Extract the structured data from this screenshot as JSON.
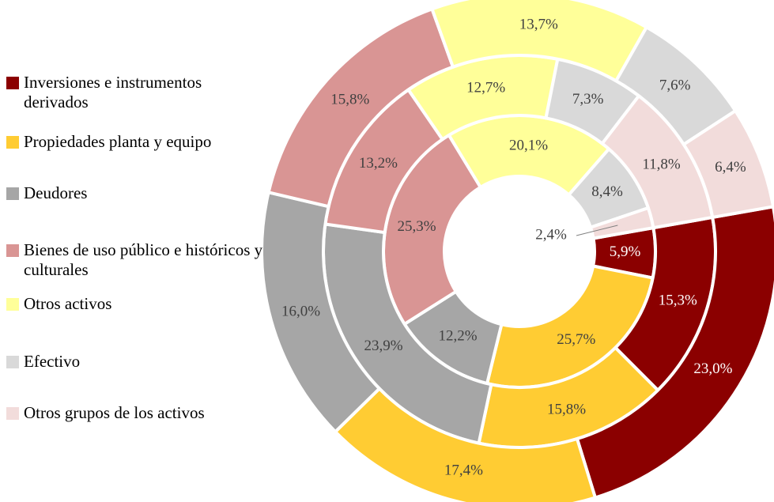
{
  "chart_data": {
    "type": "donut",
    "categories": [
      "Inversiones e instrumentos derivados",
      "Propiedades planta y equipo",
      "Deudores",
      "Bienes de uso público e históricos y culturales",
      "Otros activos",
      "Efectivo",
      "Otros grupos de los activos"
    ],
    "colors": [
      "#8b0000",
      "#ffcc33",
      "#a6a6a6",
      "#d99594",
      "#ffff99",
      "#d9d9d9",
      "#f2dcdb"
    ],
    "series": [
      {
        "values": [
          5.9,
          25.7,
          12.2,
          25.3,
          20.1,
          8.4,
          2.4
        ],
        "value_labels": [
          "5,9%",
          "25,7%",
          "12,2%",
          "25,3%",
          "20,1%",
          "8,4%",
          "2,4%"
        ]
      },
      {
        "values": [
          15.3,
          15.8,
          23.9,
          13.2,
          12.7,
          7.3,
          11.8
        ],
        "value_labels": [
          "15,3%",
          "15,8%",
          "23,9%",
          "13,2%",
          "12,7%",
          "7,3%",
          "11,8%"
        ]
      },
      {
        "values": [
          23.0,
          17.4,
          16.0,
          15.8,
          13.7,
          7.6,
          6.4
        ],
        "value_labels": [
          "23,0%",
          "17,4%",
          "16,0%",
          "15,8%",
          "13,7%",
          "7,6%",
          "6,4%"
        ]
      }
    ],
    "legend": "left"
  }
}
